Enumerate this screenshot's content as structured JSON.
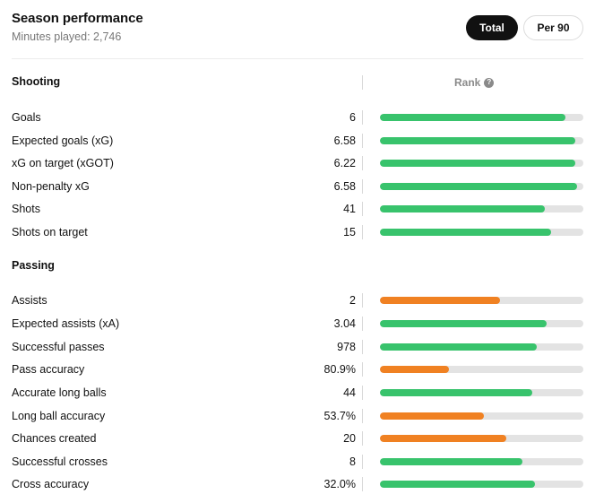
{
  "header": {
    "title": "Season performance",
    "subtitle": "Minutes played: 2,746"
  },
  "toggle": {
    "total_label": "Total",
    "per90_label": "Per 90",
    "selected": "Total"
  },
  "rank_label": "Rank",
  "colors": {
    "high": "#38c36c",
    "low": "#f08122",
    "track": "#e3e3e3"
  },
  "sections": [
    {
      "title": "Shooting",
      "stats": [
        {
          "label": "Goals",
          "value": "6",
          "rank_fraction": 0.91,
          "level": "high"
        },
        {
          "label": "Expected goals (xG)",
          "value": "6.58",
          "rank_fraction": 0.96,
          "level": "high"
        },
        {
          "label": "xG on target (xGOT)",
          "value": "6.22",
          "rank_fraction": 0.96,
          "level": "high"
        },
        {
          "label": "Non-penalty xG",
          "value": "6.58",
          "rank_fraction": 0.97,
          "level": "high"
        },
        {
          "label": "Shots",
          "value": "41",
          "rank_fraction": 0.81,
          "level": "high"
        },
        {
          "label": "Shots on target",
          "value": "15",
          "rank_fraction": 0.84,
          "level": "high"
        }
      ]
    },
    {
      "title": "Passing",
      "stats": [
        {
          "label": "Assists",
          "value": "2",
          "rank_fraction": 0.59,
          "level": "low"
        },
        {
          "label": "Expected assists (xA)",
          "value": "3.04",
          "rank_fraction": 0.82,
          "level": "high"
        },
        {
          "label": "Successful passes",
          "value": "978",
          "rank_fraction": 0.77,
          "level": "high"
        },
        {
          "label": "Pass accuracy",
          "value": "80.9%",
          "rank_fraction": 0.34,
          "level": "low"
        },
        {
          "label": "Accurate long balls",
          "value": "44",
          "rank_fraction": 0.75,
          "level": "high"
        },
        {
          "label": "Long ball accuracy",
          "value": "53.7%",
          "rank_fraction": 0.51,
          "level": "low"
        },
        {
          "label": "Chances created",
          "value": "20",
          "rank_fraction": 0.62,
          "level": "low"
        },
        {
          "label": "Successful crosses",
          "value": "8",
          "rank_fraction": 0.7,
          "level": "high"
        },
        {
          "label": "Cross accuracy",
          "value": "32.0%",
          "rank_fraction": 0.76,
          "level": "high"
        }
      ]
    }
  ]
}
